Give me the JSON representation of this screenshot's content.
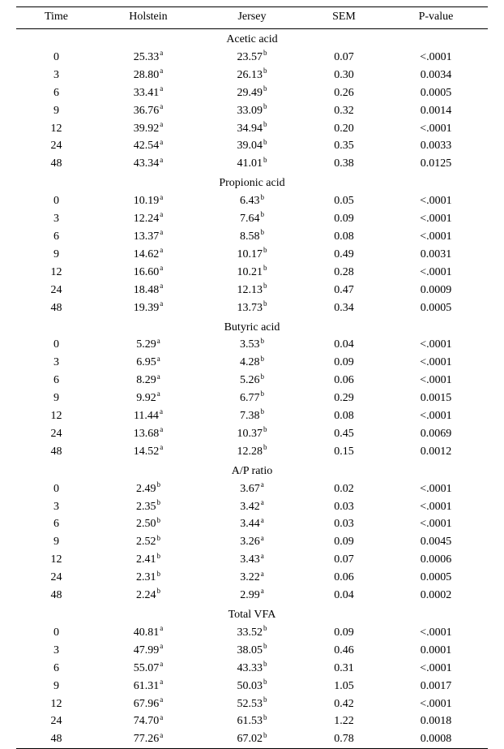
{
  "headers": {
    "time": "Time",
    "holstein": "Holstein",
    "jersey": "Jersey",
    "sem": "SEM",
    "pvalue": "P-value"
  },
  "sections": [
    {
      "title": "Acetic acid",
      "rows": [
        {
          "time": "0",
          "holstein": "25.33",
          "holstein_sup": "a",
          "jersey": "23.57",
          "jersey_sup": "b",
          "sem": "0.07",
          "pvalue": "<.0001"
        },
        {
          "time": "3",
          "holstein": "28.80",
          "holstein_sup": "a",
          "jersey": "26.13",
          "jersey_sup": "b",
          "sem": "0.30",
          "pvalue": "0.0034"
        },
        {
          "time": "6",
          "holstein": "33.41",
          "holstein_sup": "a",
          "jersey": "29.49",
          "jersey_sup": "b",
          "sem": "0.26",
          "pvalue": "0.0005"
        },
        {
          "time": "9",
          "holstein": "36.76",
          "holstein_sup": "a",
          "jersey": "33.09",
          "jersey_sup": "b",
          "sem": "0.32",
          "pvalue": "0.0014"
        },
        {
          "time": "12",
          "holstein": "39.92",
          "holstein_sup": "a",
          "jersey": "34.94",
          "jersey_sup": "b",
          "sem": "0.20",
          "pvalue": "<.0001"
        },
        {
          "time": "24",
          "holstein": "42.54",
          "holstein_sup": "a",
          "jersey": "39.04",
          "jersey_sup": "b",
          "sem": "0.35",
          "pvalue": "0.0033"
        },
        {
          "time": "48",
          "holstein": "43.34",
          "holstein_sup": "a",
          "jersey": "41.01",
          "jersey_sup": "b",
          "sem": "0.38",
          "pvalue": "0.0125"
        }
      ]
    },
    {
      "title": "Propionic acid",
      "rows": [
        {
          "time": "0",
          "holstein": "10.19",
          "holstein_sup": "a",
          "jersey": "6.43",
          "jersey_sup": "b",
          "sem": "0.05",
          "pvalue": "<.0001"
        },
        {
          "time": "3",
          "holstein": "12.24",
          "holstein_sup": "a",
          "jersey": "7.64",
          "jersey_sup": "b",
          "sem": "0.09",
          "pvalue": "<.0001"
        },
        {
          "time": "6",
          "holstein": "13.37",
          "holstein_sup": "a",
          "jersey": "8.58",
          "jersey_sup": "b",
          "sem": "0.08",
          "pvalue": "<.0001"
        },
        {
          "time": "9",
          "holstein": "14.62",
          "holstein_sup": "a",
          "jersey": "10.17",
          "jersey_sup": "b",
          "sem": "0.49",
          "pvalue": "0.0031"
        },
        {
          "time": "12",
          "holstein": "16.60",
          "holstein_sup": "a",
          "jersey": "10.21",
          "jersey_sup": "b",
          "sem": "0.28",
          "pvalue": "<.0001"
        },
        {
          "time": "24",
          "holstein": "18.48",
          "holstein_sup": "a",
          "jersey": "12.13",
          "jersey_sup": "b",
          "sem": "0.47",
          "pvalue": "0.0009"
        },
        {
          "time": "48",
          "holstein": "19.39",
          "holstein_sup": "a",
          "jersey": "13.73",
          "jersey_sup": "b",
          "sem": "0.34",
          "pvalue": "0.0005"
        }
      ]
    },
    {
      "title": "Butyric acid",
      "rows": [
        {
          "time": "0",
          "holstein": "5.29",
          "holstein_sup": "a",
          "jersey": "3.53",
          "jersey_sup": "b",
          "sem": "0.04",
          "pvalue": "<.0001"
        },
        {
          "time": "3",
          "holstein": "6.95",
          "holstein_sup": "a",
          "jersey": "4.28",
          "jersey_sup": "b",
          "sem": "0.09",
          "pvalue": "<.0001"
        },
        {
          "time": "6",
          "holstein": "8.29",
          "holstein_sup": "a",
          "jersey": "5.26",
          "jersey_sup": "b",
          "sem": "0.06",
          "pvalue": "<.0001"
        },
        {
          "time": "9",
          "holstein": "9.92",
          "holstein_sup": "a",
          "jersey": "6.77",
          "jersey_sup": "b",
          "sem": "0.29",
          "pvalue": "0.0015"
        },
        {
          "time": "12",
          "holstein": "11.44",
          "holstein_sup": "a",
          "jersey": "7.38",
          "jersey_sup": "b",
          "sem": "0.08",
          "pvalue": "<.0001"
        },
        {
          "time": "24",
          "holstein": "13.68",
          "holstein_sup": "a",
          "jersey": "10.37",
          "jersey_sup": "b",
          "sem": "0.45",
          "pvalue": "0.0069"
        },
        {
          "time": "48",
          "holstein": "14.52",
          "holstein_sup": "a",
          "jersey": "12.28",
          "jersey_sup": "b",
          "sem": "0.15",
          "pvalue": "0.0012"
        }
      ]
    },
    {
      "title": "A/P ratio",
      "rows": [
        {
          "time": "0",
          "holstein": "2.49",
          "holstein_sup": "b",
          "jersey": "3.67",
          "jersey_sup": "a",
          "sem": "0.02",
          "pvalue": "<.0001"
        },
        {
          "time": "3",
          "holstein": "2.35",
          "holstein_sup": "b",
          "jersey": "3.42",
          "jersey_sup": "a",
          "sem": "0.03",
          "pvalue": "<.0001"
        },
        {
          "time": "6",
          "holstein": "2.50",
          "holstein_sup": "b",
          "jersey": "3.44",
          "jersey_sup": "a",
          "sem": "0.03",
          "pvalue": "<.0001"
        },
        {
          "time": "9",
          "holstein": "2.52",
          "holstein_sup": "b",
          "jersey": "3.26",
          "jersey_sup": "a",
          "sem": "0.09",
          "pvalue": "0.0045"
        },
        {
          "time": "12",
          "holstein": "2.41",
          "holstein_sup": "b",
          "jersey": "3.43",
          "jersey_sup": "a",
          "sem": "0.07",
          "pvalue": "0.0006"
        },
        {
          "time": "24",
          "holstein": "2.31",
          "holstein_sup": "b",
          "jersey": "3.22",
          "jersey_sup": "a",
          "sem": "0.06",
          "pvalue": "0.0005"
        },
        {
          "time": "48",
          "holstein": "2.24",
          "holstein_sup": "b",
          "jersey": "2.99",
          "jersey_sup": "a",
          "sem": "0.04",
          "pvalue": "0.0002"
        }
      ]
    },
    {
      "title": "Total VFA",
      "rows": [
        {
          "time": "0",
          "holstein": "40.81",
          "holstein_sup": "a",
          "jersey": "33.52",
          "jersey_sup": "b",
          "sem": "0.09",
          "pvalue": "<.0001"
        },
        {
          "time": "3",
          "holstein": "47.99",
          "holstein_sup": "a",
          "jersey": "38.05",
          "jersey_sup": "b",
          "sem": "0.46",
          "pvalue": "0.0001"
        },
        {
          "time": "6",
          "holstein": "55.07",
          "holstein_sup": "a",
          "jersey": "43.33",
          "jersey_sup": "b",
          "sem": "0.31",
          "pvalue": "<.0001"
        },
        {
          "time": "9",
          "holstein": "61.31",
          "holstein_sup": "a",
          "jersey": "50.03",
          "jersey_sup": "b",
          "sem": "1.05",
          "pvalue": "0.0017"
        },
        {
          "time": "12",
          "holstein": "67.96",
          "holstein_sup": "a",
          "jersey": "52.53",
          "jersey_sup": "b",
          "sem": "0.42",
          "pvalue": "<.0001"
        },
        {
          "time": "24",
          "holstein": "74.70",
          "holstein_sup": "a",
          "jersey": "61.53",
          "jersey_sup": "b",
          "sem": "1.22",
          "pvalue": "0.0018"
        },
        {
          "time": "48",
          "holstein": "77.26",
          "holstein_sup": "a",
          "jersey": "67.02",
          "jersey_sup": "b",
          "sem": "0.78",
          "pvalue": "0.0008"
        }
      ]
    }
  ]
}
